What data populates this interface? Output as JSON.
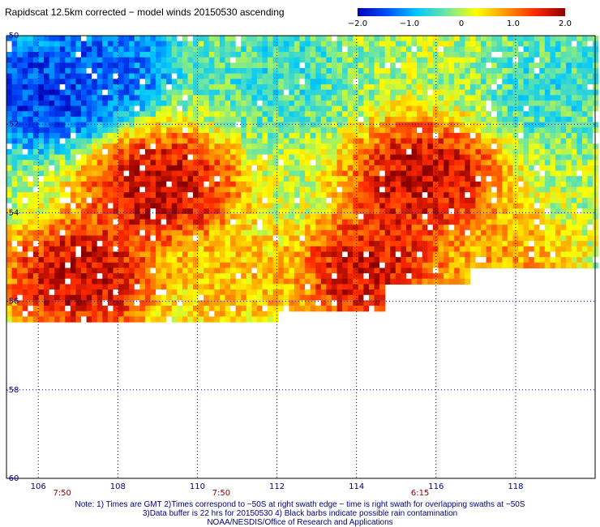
{
  "chart_data": {
    "type": "heatmap",
    "title": "Rapidscat 12.5km corrected − model winds 20150530 ascending",
    "xlabel": "",
    "ylabel": "",
    "xlim": [
      105.2,
      120
    ],
    "ylim": [
      -60,
      -50
    ],
    "x_ticks": [
      "106",
      "108",
      "110",
      "112",
      "114",
      "116",
      "118"
    ],
    "y_ticks": [
      "-50",
      "-52",
      "-54",
      "-56",
      "-58",
      "-60"
    ],
    "grid": true,
    "colorbar": {
      "min": -2.0,
      "max": 2.0,
      "ticks": [
        "−2.0",
        "−1.0",
        "0",
        "1.0",
        "2.0"
      ],
      "colors": [
        "#0000b4",
        "#0050ff",
        "#00c8ff",
        "#6ee6a0",
        "#ffff00",
        "#ff9600",
        "#ff2800",
        "#8c0000"
      ]
    },
    "time_labels": [
      {
        "x": 106.6,
        "label": "7:50"
      },
      {
        "x": 110.6,
        "label": "7:50"
      },
      {
        "x": 115.6,
        "label": "6:15"
      }
    ],
    "data_extent": {
      "lon": [
        105.2,
        120
      ],
      "lat": [
        -56.5,
        -50
      ]
    },
    "anomaly_regions": [
      {
        "lon": 109.0,
        "lat": -53.4,
        "value": 2.0
      },
      {
        "lon": 115.6,
        "lat": -53.2,
        "value": 2.0
      },
      {
        "lon": 107.0,
        "lat": -55.4,
        "value": 2.0
      },
      {
        "lon": 114.3,
        "lat": -55.3,
        "value": 1.9
      },
      {
        "lon": 106.0,
        "lat": -51.2,
        "value": -1.8
      },
      {
        "lon": 107.5,
        "lat": -50.6,
        "value": -1.5
      },
      {
        "lon": 112.0,
        "lat": -50.8,
        "value": -0.6
      },
      {
        "lon": 119.0,
        "lat": -51.0,
        "value": -0.6
      },
      {
        "lon": 110.8,
        "lat": -55.5,
        "value": 0.7
      },
      {
        "lon": 117.5,
        "lat": -55.2,
        "value": 0.9
      }
    ]
  },
  "notes": {
    "line1": "Note: 1) Times are GMT 2)Times correspond to −50S at right swath edge − time is right swath for overlapping swaths at −50S",
    "line2": "3)Data buffer is 22 hrs for 20150530 4) Black barbs indicate possible rain contamination",
    "line3": "NOAA/NESDIS/Office of Research and Applications"
  }
}
